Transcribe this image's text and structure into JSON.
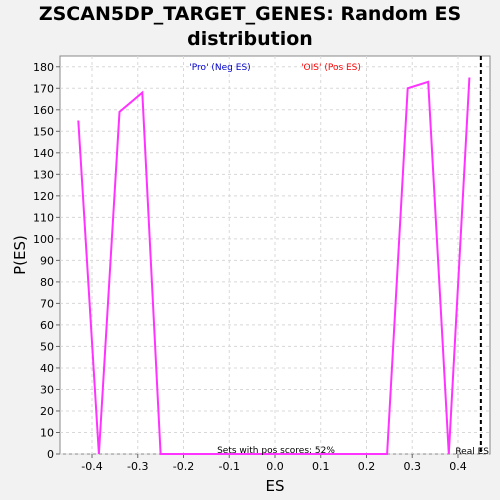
{
  "chart_data": {
    "type": "line",
    "title": "ZSCAN5DP_TARGET_GENES: Random ES distribution",
    "xlabel": "ES",
    "ylabel": "P(ES)",
    "xlim": [
      -0.47,
      0.47
    ],
    "ylim": [
      0,
      185
    ],
    "x_ticks": [
      -0.4,
      -0.3,
      -0.2,
      -0.1,
      0.0,
      0.1,
      0.2,
      0.3,
      0.4
    ],
    "x_tick_labels": [
      "-0.4",
      "-0.3",
      "-0.2",
      "-0.1",
      "0.0",
      "0.1",
      "0.2",
      "0.3",
      "0.4"
    ],
    "y_ticks": [
      0,
      10,
      20,
      30,
      40,
      50,
      60,
      70,
      80,
      90,
      100,
      110,
      120,
      130,
      140,
      150,
      160,
      170,
      180
    ],
    "grid": true,
    "series": [
      {
        "color": "#ff33ff",
        "x": [
          -0.43,
          -0.385,
          -0.34,
          -0.29,
          -0.25,
          0.0,
          0.245,
          0.29,
          0.335,
          0.38,
          0.425
        ],
        "y": [
          155,
          0,
          159,
          168,
          0,
          0,
          0,
          170,
          173,
          0,
          175
        ]
      }
    ],
    "real_es": 0.45,
    "annotations": {
      "neg": "'Pro' (Neg ES)",
      "pos": "'OIS' (Pos ES)",
      "pos_scores": "Sets with pos scores: 52%",
      "real_es": "Real ES"
    },
    "colors": {
      "neg": "#0000cc",
      "pos": "#ff0000",
      "line": "#ff33ff",
      "real_es": "#000000"
    }
  }
}
